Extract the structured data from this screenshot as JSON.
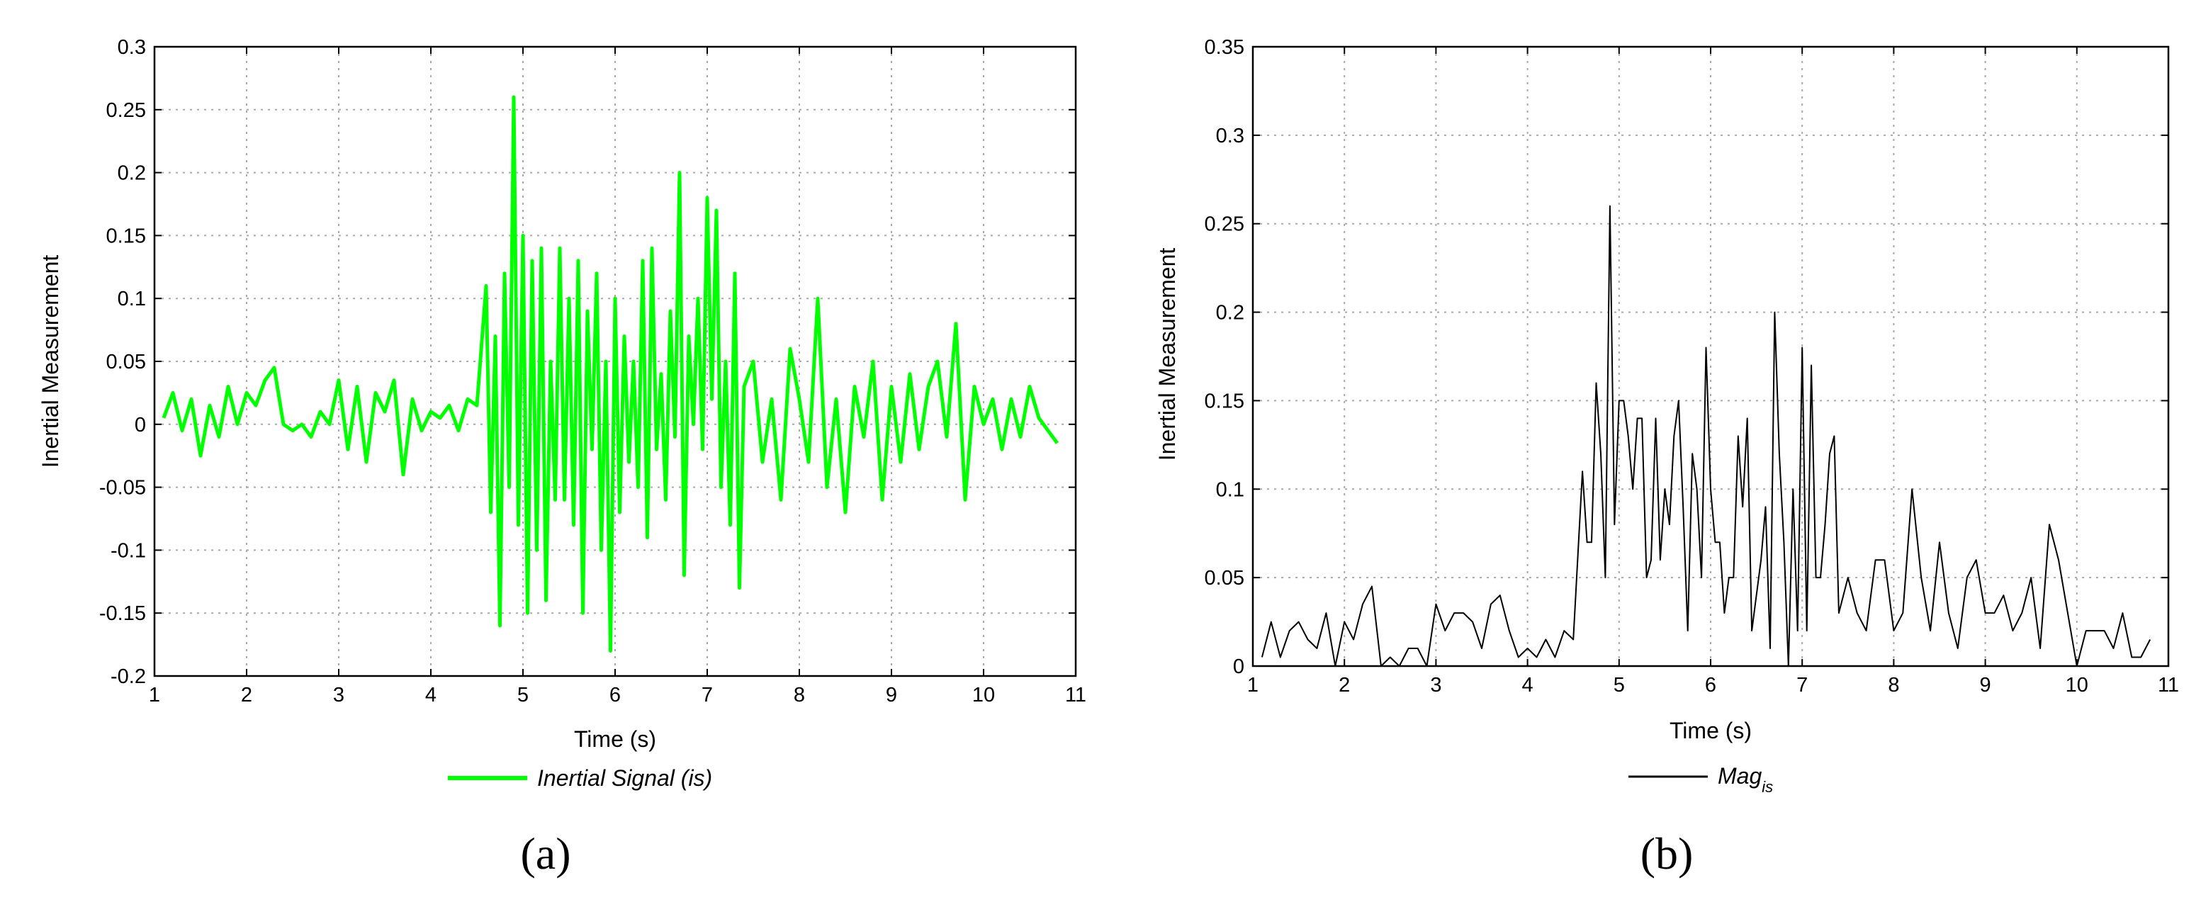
{
  "chart_data": [
    {
      "type": "line",
      "panel_label": "(a)",
      "xlabel": "Time (s)",
      "ylabel": "Inertial Measurement",
      "xlim": [
        1,
        11
      ],
      "ylim": [
        -0.2,
        0.3
      ],
      "xticks": [
        "1",
        "2",
        "3",
        "4",
        "5",
        "6",
        "7",
        "8",
        "9",
        "10",
        "11"
      ],
      "yticks": [
        "-0.2",
        "-0.15",
        "-0.1",
        "-0.05",
        "0",
        "0.05",
        "0.1",
        "0.15",
        "0.2",
        "0.25",
        "0.3"
      ],
      "grid": true,
      "legend_position": "below",
      "series": [
        {
          "name": "Inertial Signal (is)",
          "color": "#00ff00",
          "x": [
            1.1,
            1.2,
            1.3,
            1.4,
            1.5,
            1.6,
            1.7,
            1.8,
            1.9,
            2.0,
            2.1,
            2.2,
            2.3,
            2.4,
            2.5,
            2.6,
            2.7,
            2.8,
            2.9,
            3.0,
            3.1,
            3.2,
            3.3,
            3.4,
            3.5,
            3.6,
            3.7,
            3.8,
            3.9,
            4.0,
            4.1,
            4.2,
            4.3,
            4.4,
            4.5,
            4.6,
            4.65,
            4.7,
            4.75,
            4.8,
            4.85,
            4.9,
            4.95,
            5.0,
            5.05,
            5.1,
            5.15,
            5.2,
            5.25,
            5.3,
            5.35,
            5.4,
            5.45,
            5.5,
            5.55,
            5.6,
            5.65,
            5.7,
            5.75,
            5.8,
            5.85,
            5.9,
            5.95,
            6.0,
            6.05,
            6.1,
            6.15,
            6.2,
            6.25,
            6.3,
            6.35,
            6.4,
            6.45,
            6.5,
            6.55,
            6.6,
            6.65,
            6.7,
            6.75,
            6.8,
            6.85,
            6.9,
            6.95,
            7.0,
            7.05,
            7.1,
            7.15,
            7.2,
            7.25,
            7.3,
            7.35,
            7.4,
            7.5,
            7.6,
            7.7,
            7.8,
            7.9,
            8.0,
            8.1,
            8.2,
            8.3,
            8.4,
            8.5,
            8.6,
            8.7,
            8.8,
            8.9,
            9.0,
            9.1,
            9.2,
            9.3,
            9.4,
            9.5,
            9.6,
            9.7,
            9.8,
            9.9,
            10.0,
            10.1,
            10.2,
            10.3,
            10.4,
            10.5,
            10.6,
            10.7,
            10.8
          ],
          "y": [
            0.005,
            0.025,
            -0.005,
            0.02,
            -0.025,
            0.015,
            -0.01,
            0.03,
            0.0,
            0.025,
            0.015,
            0.035,
            0.045,
            0.0,
            -0.005,
            0.0,
            -0.01,
            0.01,
            0.0,
            0.035,
            -0.02,
            0.03,
            -0.03,
            0.025,
            0.01,
            0.035,
            -0.04,
            0.02,
            -0.005,
            0.01,
            0.005,
            0.015,
            -0.005,
            0.02,
            0.015,
            0.11,
            -0.07,
            0.07,
            -0.16,
            0.12,
            -0.05,
            0.26,
            -0.08,
            0.15,
            -0.15,
            0.13,
            -0.1,
            0.14,
            -0.14,
            0.05,
            -0.06,
            0.14,
            -0.06,
            0.1,
            -0.08,
            0.13,
            -0.15,
            0.09,
            -0.02,
            0.12,
            -0.1,
            0.05,
            -0.18,
            0.1,
            -0.07,
            0.07,
            -0.03,
            0.05,
            -0.05,
            0.13,
            -0.09,
            0.14,
            -0.02,
            0.04,
            -0.06,
            0.09,
            -0.01,
            0.2,
            -0.12,
            0.07,
            0.0,
            0.1,
            -0.02,
            0.18,
            0.02,
            0.17,
            -0.05,
            0.05,
            -0.08,
            0.12,
            -0.13,
            0.03,
            0.05,
            -0.03,
            0.02,
            -0.06,
            0.06,
            0.02,
            -0.03,
            0.1,
            -0.05,
            0.02,
            -0.07,
            0.03,
            -0.01,
            0.05,
            -0.06,
            0.03,
            -0.03,
            0.04,
            -0.02,
            0.03,
            0.05,
            -0.01,
            0.08,
            -0.06,
            0.03,
            0.0,
            0.02,
            -0.02,
            0.02,
            -0.01,
            0.03,
            0.005,
            -0.005,
            -0.015
          ]
        }
      ]
    },
    {
      "type": "line",
      "panel_label": "(b)",
      "xlabel": "Time (s)",
      "ylabel": "Inertial Measurement",
      "xlim": [
        1,
        11
      ],
      "ylim": [
        0,
        0.35
      ],
      "xticks": [
        "1",
        "2",
        "3",
        "4",
        "5",
        "6",
        "7",
        "8",
        "9",
        "10",
        "11"
      ],
      "yticks": [
        "0",
        "0.05",
        "0.1",
        "0.15",
        "0.2",
        "0.25",
        "0.3",
        "0.35"
      ],
      "grid": true,
      "legend_position": "below",
      "series": [
        {
          "name": "Mag",
          "name_subscript": "is",
          "color": "#000000",
          "x": [
            1.1,
            1.2,
            1.3,
            1.4,
            1.5,
            1.6,
            1.7,
            1.8,
            1.9,
            2.0,
            2.1,
            2.2,
            2.3,
            2.4,
            2.5,
            2.6,
            2.7,
            2.8,
            2.9,
            3.0,
            3.1,
            3.2,
            3.3,
            3.4,
            3.5,
            3.6,
            3.7,
            3.8,
            3.9,
            4.0,
            4.1,
            4.2,
            4.3,
            4.4,
            4.5,
            4.6,
            4.65,
            4.7,
            4.75,
            4.8,
            4.85,
            4.9,
            4.95,
            5.0,
            5.05,
            5.1,
            5.15,
            5.2,
            5.25,
            5.3,
            5.35,
            5.4,
            5.45,
            5.5,
            5.55,
            5.6,
            5.65,
            5.7,
            5.75,
            5.8,
            5.85,
            5.9,
            5.95,
            6.0,
            6.05,
            6.1,
            6.15,
            6.2,
            6.25,
            6.3,
            6.35,
            6.4,
            6.45,
            6.5,
            6.55,
            6.6,
            6.65,
            6.7,
            6.75,
            6.8,
            6.85,
            6.9,
            6.95,
            7.0,
            7.05,
            7.1,
            7.15,
            7.2,
            7.25,
            7.3,
            7.35,
            7.4,
            7.5,
            7.6,
            7.7,
            7.8,
            7.9,
            8.0,
            8.1,
            8.2,
            8.3,
            8.4,
            8.5,
            8.6,
            8.7,
            8.8,
            8.9,
            9.0,
            9.1,
            9.2,
            9.3,
            9.4,
            9.5,
            9.6,
            9.7,
            9.8,
            9.9,
            10.0,
            10.1,
            10.2,
            10.3,
            10.4,
            10.5,
            10.6,
            10.7,
            10.8
          ],
          "y": [
            0.005,
            0.025,
            0.005,
            0.02,
            0.025,
            0.015,
            0.01,
            0.03,
            0.0,
            0.025,
            0.015,
            0.035,
            0.045,
            0.0,
            0.005,
            0.0,
            0.01,
            0.01,
            0.0,
            0.035,
            0.02,
            0.03,
            0.03,
            0.025,
            0.01,
            0.035,
            0.04,
            0.02,
            0.005,
            0.01,
            0.005,
            0.015,
            0.005,
            0.02,
            0.015,
            0.11,
            0.07,
            0.07,
            0.16,
            0.12,
            0.05,
            0.26,
            0.08,
            0.15,
            0.15,
            0.13,
            0.1,
            0.14,
            0.14,
            0.05,
            0.06,
            0.14,
            0.06,
            0.1,
            0.08,
            0.13,
            0.15,
            0.09,
            0.02,
            0.12,
            0.1,
            0.05,
            0.18,
            0.1,
            0.07,
            0.07,
            0.03,
            0.05,
            0.05,
            0.13,
            0.09,
            0.14,
            0.02,
            0.04,
            0.06,
            0.09,
            0.01,
            0.2,
            0.12,
            0.07,
            0.0,
            0.1,
            0.02,
            0.18,
            0.02,
            0.17,
            0.05,
            0.05,
            0.08,
            0.12,
            0.13,
            0.03,
            0.05,
            0.03,
            0.02,
            0.06,
            0.06,
            0.02,
            0.03,
            0.1,
            0.05,
            0.02,
            0.07,
            0.03,
            0.01,
            0.05,
            0.06,
            0.03,
            0.03,
            0.04,
            0.02,
            0.03,
            0.05,
            0.01,
            0.08,
            0.06,
            0.03,
            0.0,
            0.02,
            0.02,
            0.02,
            0.01,
            0.03,
            0.005,
            0.005,
            0.015
          ]
        }
      ]
    }
  ]
}
